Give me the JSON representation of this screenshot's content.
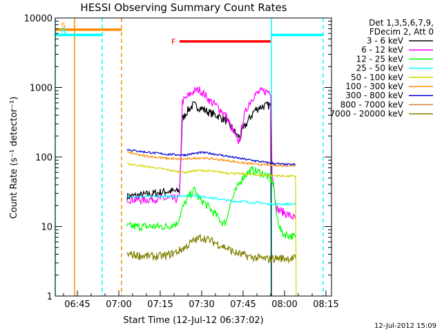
{
  "chart_data": {
    "type": "line",
    "title": "HESSI Observing Summary Count Rates",
    "xlabel": "Start Time (12-Jul-12 06:37:02)",
    "ylabel": "Count Rate (s⁻¹ detector⁻¹)",
    "y_scale": "log",
    "ylim": [
      1,
      10000
    ],
    "xlim_minutes": [
      397,
      497
    ],
    "x_ticks": [
      {
        "label": "06:45",
        "min": 405
      },
      {
        "label": "07:00",
        "min": 420
      },
      {
        "label": "07:15",
        "min": 435
      },
      {
        "label": "07:30",
        "min": 450
      },
      {
        "label": "07:45",
        "min": 465
      },
      {
        "label": "08:00",
        "min": 480
      },
      {
        "label": "08:15",
        "min": 495
      }
    ],
    "y_ticks": [
      {
        "label": "1",
        "v": 1
      },
      {
        "label": "10",
        "v": 10
      },
      {
        "label": "100",
        "v": 100
      },
      {
        "label": "1000",
        "v": 1000
      },
      {
        "label": "10000",
        "v": 10000
      }
    ],
    "legend": {
      "header": [
        "Det 1,3,5,6,7,9,",
        "FDecim 2, Att 0"
      ],
      "placement": "right"
    },
    "series": [
      {
        "name": "3 - 6 keV",
        "color": "#000000",
        "points": [
          [
            423,
            27
          ],
          [
            428,
            28
          ],
          [
            433,
            30
          ],
          [
            437,
            32
          ],
          [
            441,
            32
          ],
          [
            442,
            33
          ],
          [
            443,
            350
          ],
          [
            445,
            470
          ],
          [
            447,
            560
          ],
          [
            450,
            500
          ],
          [
            453,
            430
          ],
          [
            456,
            390
          ],
          [
            459,
            330
          ],
          [
            461,
            260
          ],
          [
            462,
            230
          ],
          [
            463,
            200
          ],
          [
            464,
            195
          ],
          [
            465,
            250
          ],
          [
            467,
            340
          ],
          [
            469,
            460
          ],
          [
            471,
            520
          ],
          [
            473,
            545
          ],
          [
            475,
            555
          ],
          [
            475.2,
            1
          ]
        ]
      },
      {
        "name": "6 - 12 keV",
        "color": "#ff00ff",
        "points": [
          [
            423,
            25
          ],
          [
            428,
            24
          ],
          [
            433,
            25
          ],
          [
            437,
            25
          ],
          [
            441,
            25
          ],
          [
            442,
            26
          ],
          [
            443,
            620
          ],
          [
            445,
            740
          ],
          [
            447,
            880
          ],
          [
            449,
            930
          ],
          [
            451,
            800
          ],
          [
            453,
            640
          ],
          [
            456,
            520
          ],
          [
            459,
            380
          ],
          [
            461,
            250
          ],
          [
            462,
            210
          ],
          [
            463,
            160
          ],
          [
            464,
            190
          ],
          [
            465,
            350
          ],
          [
            467,
            580
          ],
          [
            469,
            770
          ],
          [
            471,
            860
          ],
          [
            473,
            880
          ],
          [
            475,
            870
          ],
          [
            475.5,
            60
          ],
          [
            477,
            18
          ],
          [
            481,
            15
          ],
          [
            484,
            13
          ]
        ]
      },
      {
        "name": "12 - 25 keV",
        "color": "#00ff00",
        "points": [
          [
            423,
            10
          ],
          [
            428,
            10
          ],
          [
            433,
            10
          ],
          [
            437,
            10
          ],
          [
            441,
            11
          ],
          [
            442,
            14
          ],
          [
            444,
            22
          ],
          [
            446,
            29
          ],
          [
            447.5,
            34
          ],
          [
            449,
            25
          ],
          [
            451,
            22
          ],
          [
            453,
            18
          ],
          [
            455,
            15
          ],
          [
            457,
            12
          ],
          [
            458,
            11
          ],
          [
            459,
            12
          ],
          [
            460,
            20
          ],
          [
            462,
            30
          ],
          [
            464,
            45
          ],
          [
            466,
            57
          ],
          [
            468,
            64
          ],
          [
            470,
            62
          ],
          [
            472,
            58
          ],
          [
            474,
            52
          ],
          [
            476,
            42
          ],
          [
            477,
            15
          ],
          [
            479,
            8
          ],
          [
            484,
            7
          ]
        ]
      },
      {
        "name": "25 - 50 keV",
        "color": "#00ffff",
        "points": [
          [
            423,
            27
          ],
          [
            428,
            27
          ],
          [
            433,
            27
          ],
          [
            437,
            27
          ],
          [
            441,
            27
          ],
          [
            444,
            28
          ],
          [
            447,
            28
          ],
          [
            450,
            27
          ],
          [
            453,
            26
          ],
          [
            456,
            25
          ],
          [
            459,
            24
          ],
          [
            462,
            23
          ],
          [
            465,
            23
          ],
          [
            468,
            22
          ],
          [
            471,
            22
          ],
          [
            474,
            21
          ],
          [
            477,
            21
          ],
          [
            481,
            21
          ],
          [
            484,
            21
          ]
        ]
      },
      {
        "name": "50 - 100 keV",
        "color": "#d4d400",
        "points": [
          [
            423,
            80
          ],
          [
            428,
            75
          ],
          [
            433,
            70
          ],
          [
            437,
            66
          ],
          [
            441,
            62
          ],
          [
            444,
            60
          ],
          [
            447,
            63
          ],
          [
            450,
            64
          ],
          [
            453,
            63
          ],
          [
            456,
            61
          ],
          [
            459,
            59
          ],
          [
            462,
            58
          ],
          [
            465,
            57
          ],
          [
            468,
            56
          ],
          [
            471,
            55
          ],
          [
            474,
            54
          ],
          [
            477,
            54
          ],
          [
            481,
            53
          ],
          [
            484,
            53
          ],
          [
            484.2,
            1
          ]
        ]
      },
      {
        "name": "100 - 300 keV",
        "color": "#ff8c00",
        "points": [
          [
            423,
            118
          ],
          [
            428,
            105
          ],
          [
            433,
            100
          ],
          [
            437,
            96
          ],
          [
            441,
            93
          ],
          [
            444,
            93
          ],
          [
            447,
            96
          ],
          [
            450,
            97
          ],
          [
            453,
            95
          ],
          [
            456,
            92
          ],
          [
            459,
            89
          ],
          [
            462,
            86
          ],
          [
            465,
            82
          ],
          [
            468,
            80
          ],
          [
            471,
            78
          ],
          [
            474,
            77
          ],
          [
            477,
            76
          ],
          [
            481,
            75
          ],
          [
            484,
            76
          ]
        ]
      },
      {
        "name": "300 - 800 keV",
        "color": "#0000cd",
        "points": [
          [
            423,
            128
          ],
          [
            428,
            120
          ],
          [
            433,
            114
          ],
          [
            437,
            110
          ],
          [
            441,
            108
          ],
          [
            444,
            107
          ],
          [
            447,
            112
          ],
          [
            450,
            116
          ],
          [
            453,
            113
          ],
          [
            456,
            108
          ],
          [
            459,
            103
          ],
          [
            462,
            98
          ],
          [
            465,
            94
          ],
          [
            468,
            90
          ],
          [
            471,
            86
          ],
          [
            474,
            83
          ],
          [
            477,
            80
          ],
          [
            481,
            78
          ],
          [
            484,
            78
          ]
        ]
      },
      {
        "name": "800 - 7000 keV",
        "color": "#cd853f",
        "points": []
      },
      {
        "name": "7000 - 20000 keV",
        "color": "#808000",
        "points": [
          [
            423,
            4
          ],
          [
            428,
            3.8
          ],
          [
            433,
            3.7
          ],
          [
            437,
            3.8
          ],
          [
            441,
            4.3
          ],
          [
            444,
            5
          ],
          [
            447,
            6.2
          ],
          [
            450,
            7
          ],
          [
            453,
            6.3
          ],
          [
            456,
            5.6
          ],
          [
            459,
            4.9
          ],
          [
            462,
            4.2
          ],
          [
            465,
            3.9
          ],
          [
            468,
            3.6
          ],
          [
            471,
            3.5
          ],
          [
            474,
            3.4
          ],
          [
            477,
            3.5
          ],
          [
            481,
            3.5
          ],
          [
            484,
            3.5
          ]
        ]
      }
    ],
    "flags": [
      {
        "label": "S",
        "color": "#ff8c00",
        "x0": 397,
        "x1": 421,
        "y": 6800
      },
      {
        "label": "N",
        "color": "#00ffff",
        "x0": 397,
        "x1": 414,
        "y": 5700
      },
      {
        "label": "F",
        "color": "#ff0000",
        "x0": 442,
        "x1": 475,
        "y": 4600
      },
      {
        "label": "",
        "color": "#00ffff",
        "x0": 475,
        "x1": 494,
        "y": 5700
      }
    ],
    "vlines": [
      {
        "x": 397,
        "color": "#00ffff",
        "dashed": false
      },
      {
        "x": 404,
        "color": "#ff8c00",
        "dashed": false
      },
      {
        "x": 414,
        "color": "#00ffff",
        "dashed": true
      },
      {
        "x": 421,
        "color": "#ff8c00",
        "dashed": true
      },
      {
        "x": 475.3,
        "color": "#00ffff",
        "dashed": false
      },
      {
        "x": 494,
        "color": "#00ffff",
        "dashed": true
      }
    ]
  },
  "footer": {
    "timestamp": "12-Jul-2012 15:09"
  }
}
